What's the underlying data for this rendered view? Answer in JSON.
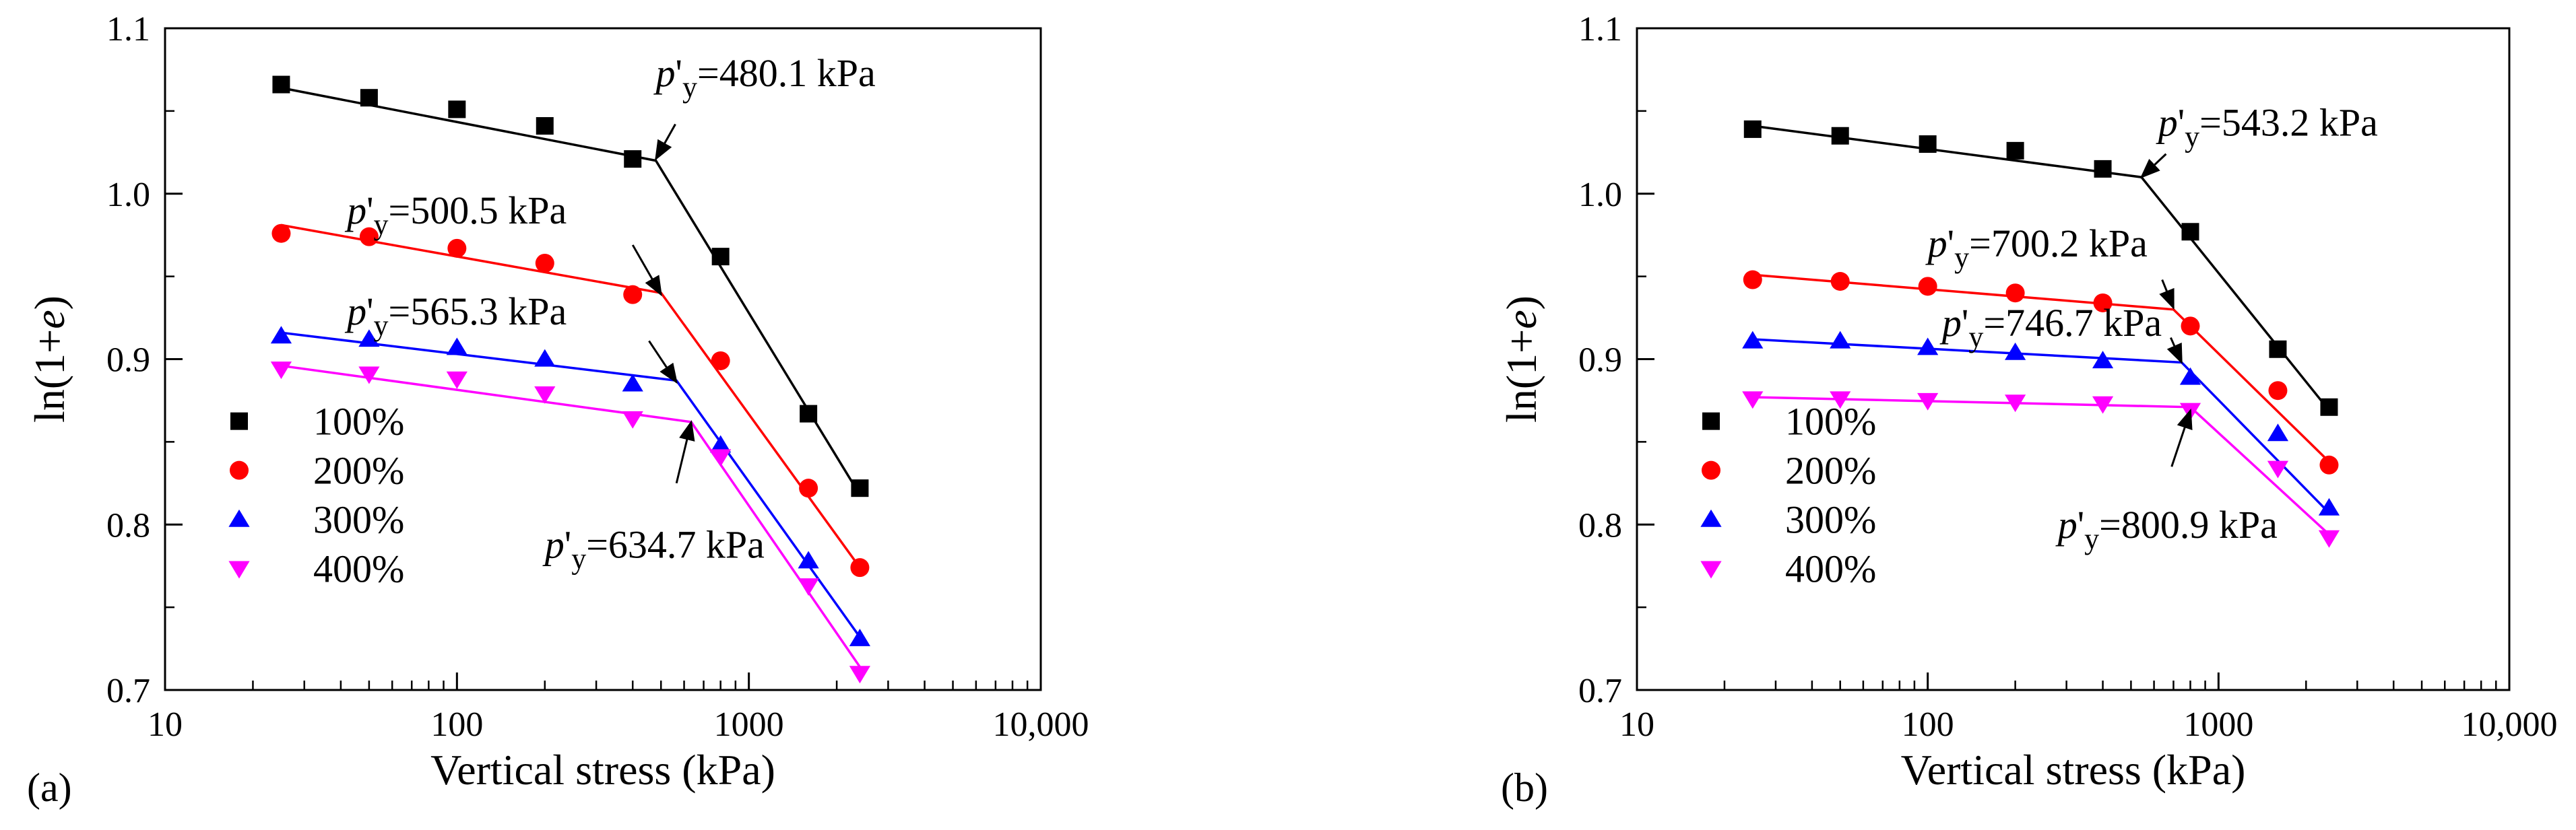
{
  "figure": {
    "panels": [
      "(a)",
      "(b)"
    ]
  },
  "chart_data": [
    {
      "type": "scatter",
      "panel_label": "(a)",
      "xlabel": "Vertical stress (kPa)",
      "ylabel": "ln(1+e)",
      "xscale": "log",
      "xlim": [
        10,
        10000
      ],
      "ylim": [
        0.7,
        1.1
      ],
      "xticks": [
        10,
        100,
        1000,
        10000
      ],
      "xtick_labels": [
        "10",
        "100",
        "1000",
        "10,000"
      ],
      "yticks": [
        0.7,
        0.8,
        0.9,
        1.0,
        1.1
      ],
      "ytick_labels": [
        "0.7",
        "0.8",
        "0.9",
        "1.0",
        "1.1"
      ],
      "legend_position": "bottom-left",
      "series": [
        {
          "name": "100%",
          "color": "#000000",
          "marker": "square",
          "x": [
            25,
            50,
            100,
            200,
            400,
            800,
            1600,
            2400
          ],
          "y": [
            1.066,
            1.058,
            1.051,
            1.041,
            1.021,
            0.962,
            0.867,
            0.822
          ],
          "fit": [
            [
              25,
              1.064
            ],
            [
              480.1,
              1.02
            ],
            [
              2400,
              0.818
            ]
          ]
        },
        {
          "name": "200%",
          "color": "#ff0000",
          "marker": "circle",
          "x": [
            25,
            50,
            100,
            200,
            400,
            800,
            1600,
            2400
          ],
          "y": [
            0.976,
            0.974,
            0.967,
            0.958,
            0.939,
            0.899,
            0.822,
            0.774
          ],
          "fit": [
            [
              25,
              0.981
            ],
            [
              500.5,
              0.94
            ],
            [
              2400,
              0.774
            ]
          ]
        },
        {
          "name": "300%",
          "color": "#0000ff",
          "marker": "triangle-up",
          "x": [
            25,
            50,
            100,
            200,
            400,
            800,
            1600,
            2400
          ],
          "y": [
            0.914,
            0.912,
            0.907,
            0.9,
            0.885,
            0.848,
            0.778,
            0.731
          ],
          "fit": [
            [
              25,
              0.916
            ],
            [
              565.3,
              0.887
            ],
            [
              2400,
              0.732
            ]
          ]
        },
        {
          "name": "400%",
          "color": "#ff00ff",
          "marker": "triangle-down",
          "x": [
            25,
            50,
            100,
            200,
            400,
            800,
            1600,
            2400
          ],
          "y": [
            0.894,
            0.891,
            0.888,
            0.879,
            0.864,
            0.841,
            0.763,
            0.71
          ],
          "fit": [
            [
              25,
              0.896
            ],
            [
              634.7,
              0.862
            ],
            [
              2400,
              0.714
            ]
          ]
        }
      ],
      "annotations": [
        {
          "value": "=480.1 kPa",
          "label_x": 480,
          "label_y": 1.065,
          "arrow_from": [
            560,
            1.042
          ],
          "arrow_to": [
            480.1,
            1.021
          ]
        },
        {
          "value": "=500.5 kPa",
          "label_x": 42,
          "label_y": 0.982,
          "arrow_from": [
            400,
            0.969
          ],
          "arrow_to": [
            500.5,
            0.939
          ]
        },
        {
          "value": "=565.3 kPa",
          "label_x": 42,
          "label_y": 0.921,
          "arrow_from": [
            455,
            0.911
          ],
          "arrow_to": [
            565.3,
            0.886
          ]
        },
        {
          "value": "=634.7 kPa",
          "label_x": 200,
          "label_y": 0.78,
          "arrow_from": [
            565,
            0.825
          ],
          "arrow_to": [
            634.7,
            0.862
          ]
        }
      ]
    },
    {
      "type": "scatter",
      "panel_label": "(b)",
      "xlabel": "Vertical stress (kPa)",
      "ylabel": "ln(1+e)",
      "xscale": "log",
      "xlim": [
        10,
        10000
      ],
      "ylim": [
        0.7,
        1.1
      ],
      "xticks": [
        10,
        100,
        1000,
        10000
      ],
      "xtick_labels": [
        "10",
        "100",
        "1000",
        "10,000"
      ],
      "yticks": [
        0.7,
        0.8,
        0.9,
        1.0,
        1.1
      ],
      "ytick_labels": [
        "0.7",
        "0.8",
        "0.9",
        "1.0",
        "1.1"
      ],
      "legend_position": "bottom-left",
      "series": [
        {
          "name": "100%",
          "color": "#000000",
          "marker": "square",
          "x": [
            25,
            50,
            100,
            200,
            400,
            800,
            1600,
            2400
          ],
          "y": [
            1.039,
            1.035,
            1.03,
            1.026,
            1.015,
            0.977,
            0.906,
            0.871
          ],
          "fit": [
            [
              25,
              1.041
            ],
            [
              543.2,
              1.01
            ],
            [
              2400,
              0.869
            ]
          ]
        },
        {
          "name": "200%",
          "color": "#ff0000",
          "marker": "circle",
          "x": [
            25,
            50,
            100,
            200,
            400,
            800,
            1600,
            2400
          ],
          "y": [
            0.948,
            0.947,
            0.944,
            0.94,
            0.934,
            0.92,
            0.881,
            0.836
          ],
          "fit": [
            [
              25,
              0.951
            ],
            [
              700.2,
              0.93
            ],
            [
              2400,
              0.838
            ]
          ]
        },
        {
          "name": "300%",
          "color": "#0000ff",
          "marker": "triangle-up",
          "x": [
            25,
            50,
            100,
            200,
            400,
            800,
            1600,
            2400
          ],
          "y": [
            0.911,
            0.911,
            0.907,
            0.904,
            0.899,
            0.889,
            0.855,
            0.81
          ],
          "fit": [
            [
              25,
              0.912
            ],
            [
              746.7,
              0.898
            ],
            [
              2400,
              0.807
            ]
          ]
        },
        {
          "name": "400%",
          "color": "#ff00ff",
          "marker": "triangle-down",
          "x": [
            25,
            50,
            100,
            200,
            400,
            800,
            1600,
            2400
          ],
          "y": [
            0.876,
            0.876,
            0.875,
            0.874,
            0.873,
            0.869,
            0.834,
            0.792
          ],
          "fit": [
            [
              25,
              0.877
            ],
            [
              800.9,
              0.871
            ],
            [
              2400,
              0.794
            ]
          ]
        }
      ],
      "annotations": [
        {
          "value": "=543.2 kPa",
          "label_x": 620,
          "label_y": 1.035,
          "arrow_from": [
            660,
            1.024
          ],
          "arrow_to": [
            543.2,
            1.01
          ]
        },
        {
          "value": "=700.2 kPa",
          "label_x": 100,
          "label_y": 0.962,
          "arrow_from": [
            640,
            0.948
          ],
          "arrow_to": [
            700.2,
            0.931
          ]
        },
        {
          "value": "=746.7 kPa",
          "label_x": 112,
          "label_y": 0.914,
          "arrow_from": [
            685,
            0.913
          ],
          "arrow_to": [
            746.7,
            0.898
          ]
        },
        {
          "value": "=800.9 kPa",
          "label_x": 280,
          "label_y": 0.792,
          "arrow_from": [
            690,
            0.835
          ],
          "arrow_to": [
            800.9,
            0.869
          ]
        }
      ]
    }
  ]
}
